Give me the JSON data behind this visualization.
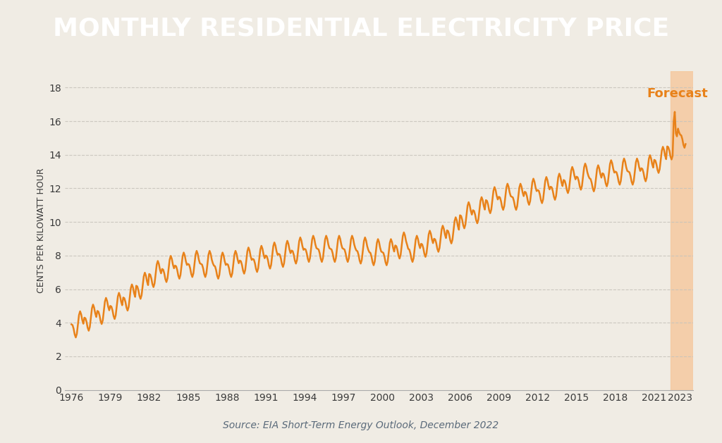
{
  "title": "MONTHLY RESIDENTIAL ELECTRICITY PRICE",
  "title_bg_color": "#2d3748",
  "title_text_color": "#ffffff",
  "bg_color": "#f0ece4",
  "plot_bg_color": "#f0ece4",
  "line_color": "#e8821a",
  "forecast_color": "#f5c9a0",
  "forecast_label_color": "#e8821a",
  "forecast_start_year": 2022.25,
  "forecast_end_year": 2024.0,
  "ylabel": "CENTS PER KILOWATT HOUR",
  "source_text": "Source: EIA Short-Term Energy Outlook, December 2022",
  "source_color": "#5a6a7a",
  "grid_color": "#c8c4bc",
  "yticks": [
    0,
    2,
    4,
    6,
    8,
    10,
    12,
    14,
    16,
    18
  ],
  "xtick_years": [
    1976,
    1979,
    1982,
    1985,
    1988,
    1991,
    1994,
    1997,
    2000,
    2003,
    2006,
    2009,
    2012,
    2015,
    2018,
    2021,
    2023
  ],
  "xmin": 1975.5,
  "xmax": 2024.0,
  "ymin": 0,
  "ymax": 19
}
